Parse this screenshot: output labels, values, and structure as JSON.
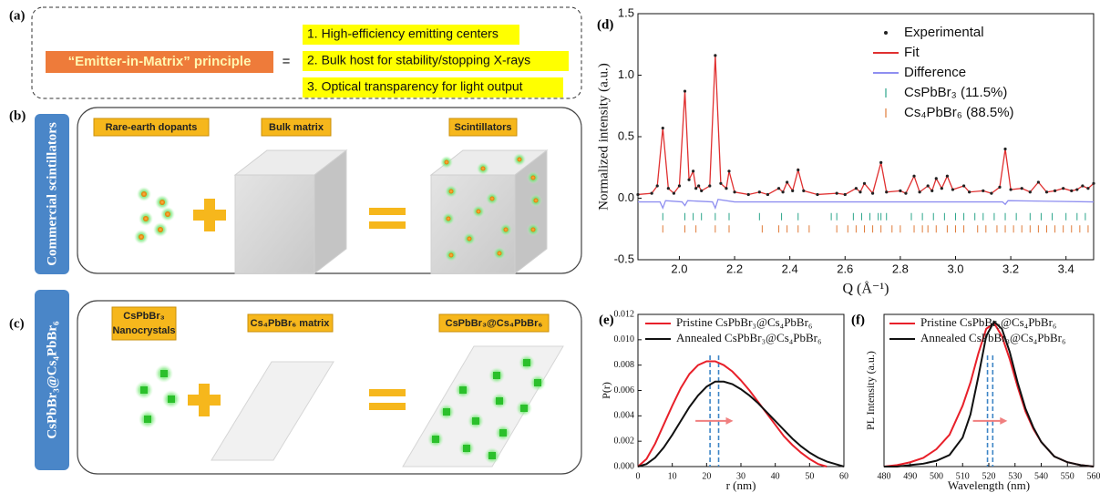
{
  "panels": {
    "a": {
      "label": "(a)",
      "principle": "“Emitter-in-Matrix” principle",
      "equals": "=",
      "items": [
        "1. High-efficiency emitting centers",
        "2. Bulk host for stability/stopping X-rays",
        "3. Optical transparency for light output"
      ]
    },
    "b": {
      "label": "(b)",
      "side_label": "Commercial scintillators",
      "captions": [
        "Rare-earth dopants",
        "Bulk matrix",
        "Scintillators"
      ]
    },
    "c": {
      "label": "(c)",
      "side_label": "CsPbBr₃@Cs₄PbBr₆",
      "captions": [
        [
          "CsPbBr₃",
          "Nanocrystals"
        ],
        "Cs₄PbBr₆ matrix",
        "CsPbBr₃@Cs₄PbBr₆"
      ]
    }
  },
  "chart_data": [
    {
      "panel_label": "(d)",
      "type": "line",
      "x_label": "Q (Å⁻¹)",
      "y_label": "Normalized intensity (a.u.)",
      "x": [
        1.85,
        1.9,
        1.92,
        1.94,
        1.96,
        1.98,
        2.0,
        2.02,
        2.035,
        2.05,
        2.06,
        2.07,
        2.08,
        2.11,
        2.13,
        2.15,
        2.17,
        2.18,
        2.2,
        2.25,
        2.29,
        2.32,
        2.36,
        2.375,
        2.39,
        2.41,
        2.43,
        2.45,
        2.5,
        2.57,
        2.6,
        2.64,
        2.655,
        2.67,
        2.7,
        2.73,
        2.75,
        2.8,
        2.82,
        2.85,
        2.87,
        2.9,
        2.915,
        2.93,
        2.95,
        2.97,
        2.99,
        3.03,
        3.05,
        3.1,
        3.13,
        3.16,
        3.18,
        3.2,
        3.24,
        3.27,
        3.3,
        3.33,
        3.36,
        3.39,
        3.42,
        3.44,
        3.46,
        3.48,
        3.5
      ],
      "xlim": [
        1.85,
        3.5
      ],
      "ylim": [
        -0.5,
        1.5
      ],
      "xticks": [
        {
          "value": 2,
          "label": "2.0"
        },
        2.2,
        2.4,
        2.6,
        2.8,
        {
          "value": 3,
          "label": "3.0"
        },
        3.2,
        3.4
      ],
      "yticks": [
        -0.5,
        {
          "value": 0,
          "label": "0.0"
        },
        0.5,
        {
          "value": 1,
          "label": "1.0"
        },
        1.5
      ],
      "legend": "upper right",
      "series": [
        {
          "name": "Experimental",
          "color": "#222222",
          "mode": "markers",
          "values": [
            0.03,
            0.04,
            0.1,
            0.57,
            0.08,
            0.04,
            0.1,
            0.87,
            0.15,
            0.22,
            0.08,
            0.1,
            0.06,
            0.1,
            1.16,
            0.12,
            0.08,
            0.22,
            0.05,
            0.03,
            0.05,
            0.03,
            0.08,
            0.05,
            0.13,
            0.06,
            0.23,
            0.06,
            0.03,
            0.04,
            0.03,
            0.08,
            0.05,
            0.12,
            0.04,
            0.29,
            0.05,
            0.06,
            0.04,
            0.18,
            0.05,
            0.1,
            0.06,
            0.16,
            0.08,
            0.18,
            0.07,
            0.1,
            0.05,
            0.06,
            0.04,
            0.09,
            0.4,
            0.07,
            0.08,
            0.05,
            0.13,
            0.05,
            0.06,
            0.08,
            0.06,
            0.07,
            0.1,
            0.08,
            0.12
          ]
        },
        {
          "name": "Fit",
          "color": "#e03030",
          "mode": "line",
          "values": [
            0.03,
            0.04,
            0.1,
            0.57,
            0.08,
            0.04,
            0.1,
            0.87,
            0.15,
            0.22,
            0.08,
            0.1,
            0.06,
            0.1,
            1.16,
            0.12,
            0.08,
            0.22,
            0.05,
            0.03,
            0.05,
            0.03,
            0.08,
            0.05,
            0.13,
            0.06,
            0.23,
            0.06,
            0.03,
            0.04,
            0.03,
            0.08,
            0.05,
            0.12,
            0.04,
            0.29,
            0.05,
            0.06,
            0.04,
            0.18,
            0.05,
            0.1,
            0.06,
            0.16,
            0.08,
            0.18,
            0.07,
            0.1,
            0.05,
            0.06,
            0.04,
            0.09,
            0.4,
            0.07,
            0.08,
            0.05,
            0.13,
            0.05,
            0.06,
            0.08,
            0.06,
            0.07,
            0.1,
            0.08,
            0.12
          ]
        },
        {
          "name": "Difference",
          "color": "#8f8ff0",
          "mode": "line",
          "x": [
            1.85,
            1.93,
            1.94,
            1.95,
            2.01,
            2.02,
            2.03,
            2.12,
            2.13,
            2.14,
            2.2,
            2.5,
            2.8,
            3.17,
            3.18,
            3.19,
            3.5
          ],
          "values": [
            -0.03,
            -0.03,
            -0.08,
            -0.02,
            -0.03,
            -0.06,
            -0.02,
            -0.03,
            -0.08,
            -0.01,
            -0.03,
            -0.03,
            -0.03,
            -0.03,
            -0.05,
            -0.02,
            -0.03
          ]
        },
        {
          "name": "CsPbBr₃ (11.5%)",
          "color": "#2aa58a",
          "mode": "ticks",
          "level": -0.15,
          "positions": [
            1.94,
            2.02,
            2.05,
            2.08,
            2.13,
            2.18,
            2.29,
            2.37,
            2.43,
            2.55,
            2.57,
            2.63,
            2.66,
            2.69,
            2.72,
            2.73,
            2.75,
            2.84,
            2.88,
            2.92,
            2.96,
            3.0,
            3.03,
            3.07,
            3.1,
            3.14,
            3.18,
            3.22,
            3.27,
            3.31,
            3.35,
            3.4,
            3.44,
            3.47
          ]
        },
        {
          "name": "Cs₄PbBr₆ (88.5%)",
          "color": "#e07b39",
          "mode": "ticks",
          "level": -0.25,
          "positions": [
            1.94,
            2.02,
            2.06,
            2.13,
            2.18,
            2.3,
            2.36,
            2.39,
            2.43,
            2.47,
            2.57,
            2.61,
            2.64,
            2.67,
            2.7,
            2.73,
            2.77,
            2.8,
            2.85,
            2.88,
            2.9,
            2.93,
            2.97,
            3.0,
            3.03,
            3.08,
            3.11,
            3.15,
            3.18,
            3.21,
            3.24,
            3.27,
            3.3,
            3.33,
            3.36,
            3.39,
            3.42,
            3.45,
            3.48
          ]
        }
      ]
    },
    {
      "panel_label": "(e)",
      "type": "line",
      "x_label": "r (nm)",
      "y_label": "P(r)",
      "x": [
        0,
        2.5,
        5,
        7.5,
        10,
        12.5,
        15,
        17.5,
        20,
        22.5,
        25,
        27.5,
        30,
        32.5,
        35,
        37.5,
        40,
        42.5,
        45,
        47.5,
        50,
        52.5,
        55,
        57.5,
        60
      ],
      "xlim": [
        0,
        60
      ],
      "ylim": [
        0,
        0.012
      ],
      "xticks": [
        0,
        10,
        20,
        30,
        40,
        50,
        60
      ],
      "yticks": [
        {
          "value": 0,
          "label": "0.000"
        },
        0.002,
        0.004,
        0.006,
        0.008,
        {
          "value": 0.01,
          "label": "0.010"
        },
        0.012
      ],
      "legend": "upper left",
      "vlines": [
        21,
        23.5
      ],
      "vline_color": "#3d85c6",
      "series": [
        {
          "name": "Pristine CsPbBr₃@Cs₄PbBr₆",
          "color": "#e8202a",
          "mode": "line",
          "values": [
            0,
            0.0006,
            0.0018,
            0.0033,
            0.0048,
            0.0062,
            0.0073,
            0.008,
            0.0083,
            0.0083,
            0.008,
            0.0075,
            0.0068,
            0.006,
            0.0051,
            0.0042,
            0.0033,
            0.0024,
            0.0017,
            0.0011,
            0.0006,
            0.0002,
            0,
            null,
            null
          ]
        },
        {
          "name": "Annealed CsPbBr₃@Cs₄PbBr₆",
          "color": "#111111",
          "mode": "line",
          "values": [
            0,
            0.0002,
            0.0007,
            0.0015,
            0.0025,
            0.0036,
            0.0047,
            0.0056,
            0.0063,
            0.0067,
            0.0067,
            0.0065,
            0.0061,
            0.0056,
            0.005,
            0.0043,
            0.0036,
            0.0029,
            0.0022,
            0.0016,
            0.0011,
            0.0007,
            0.0004,
            0.0002,
            0
          ]
        }
      ]
    },
    {
      "panel_label": "(f)",
      "type": "line",
      "x_label": "Wavelength (nm)",
      "y_label": "PL Intensity (a.u.)",
      "x": [
        480,
        485,
        490,
        495,
        500,
        505,
        510,
        513,
        516,
        519,
        522,
        525,
        528,
        531,
        534,
        537,
        540,
        545,
        550,
        555,
        560
      ],
      "xlim": [
        480,
        560
      ],
      "ylim": [
        0,
        1.05
      ],
      "xticks": [
        480,
        490,
        500,
        510,
        520,
        530,
        540,
        550,
        560
      ],
      "legend": "upper left",
      "vlines": [
        519.5,
        521.5
      ],
      "vline_color": "#3d85c6",
      "series": [
        {
          "name": "Pristine CsPbBr₃@Cs₄PbBr₆",
          "color": "#e8202a",
          "mode": "line",
          "values": [
            0,
            0.01,
            0.03,
            0.06,
            0.12,
            0.22,
            0.42,
            0.58,
            0.78,
            0.95,
            0.99,
            0.9,
            0.74,
            0.55,
            0.38,
            0.26,
            0.17,
            0.07,
            0.03,
            0.01,
            0
          ]
        },
        {
          "name": "Annealed CsPbBr₃@Cs₄PbBr₆",
          "color": "#111111",
          "mode": "line",
          "values": [
            0,
            0,
            0.01,
            0.02,
            0.04,
            0.08,
            0.2,
            0.36,
            0.62,
            0.9,
            1.0,
            0.95,
            0.79,
            0.58,
            0.4,
            0.27,
            0.17,
            0.07,
            0.03,
            0.01,
            0
          ]
        }
      ]
    }
  ]
}
